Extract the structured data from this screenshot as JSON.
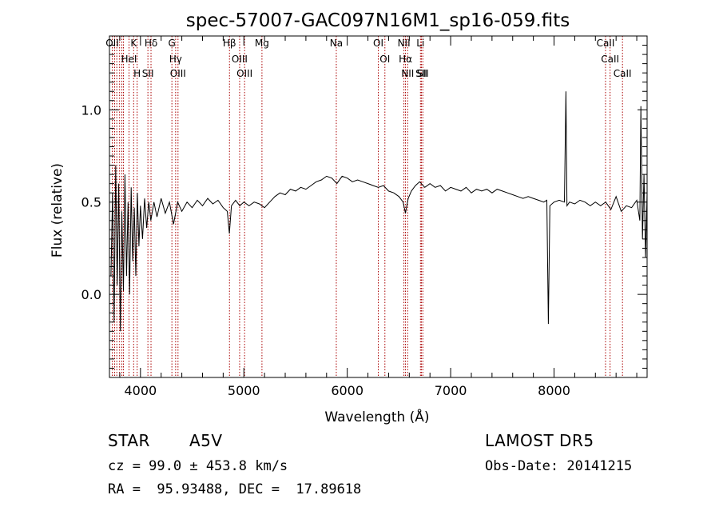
{
  "chart_data": {
    "type": "line",
    "title": "spec-57007-GAC097N16M1_sp16-059.fits",
    "xlabel": "Wavelength (Å)",
    "ylabel": "Flux (relative)",
    "xlim": [
      3700,
      8900
    ],
    "ylim": [
      -0.45,
      1.4
    ],
    "xticks": [
      4000,
      5000,
      6000,
      7000,
      8000
    ],
    "xtick_labels": [
      "4000",
      "5000",
      "6000",
      "7000",
      "8000"
    ],
    "yticks": [
      0.0,
      0.5,
      1.0
    ],
    "ytick_labels": [
      "0.0",
      "0.5",
      "1.0"
    ],
    "grid": false,
    "legend": "none",
    "line_color": "#000000",
    "marker_color": "#aa0000",
    "series": [
      {
        "points": [
          [
            3715,
            0.1
          ],
          [
            3730,
            0.55
          ],
          [
            3745,
            -0.15
          ],
          [
            3760,
            0.7
          ],
          [
            3775,
            0.05
          ],
          [
            3790,
            0.6
          ],
          [
            3805,
            -0.2
          ],
          [
            3820,
            0.45
          ],
          [
            3835,
            0.02
          ],
          [
            3850,
            0.65
          ],
          [
            3865,
            0.1
          ],
          [
            3880,
            0.5
          ],
          [
            3895,
            0.0
          ],
          [
            3910,
            0.58
          ],
          [
            3925,
            0.18
          ],
          [
            3940,
            0.47
          ],
          [
            3955,
            0.1
          ],
          [
            3970,
            0.55
          ],
          [
            3985,
            0.26
          ],
          [
            4000,
            0.48
          ],
          [
            4020,
            0.3
          ],
          [
            4040,
            0.52
          ],
          [
            4060,
            0.36
          ],
          [
            4080,
            0.5
          ],
          [
            4100,
            0.4
          ],
          [
            4130,
            0.5
          ],
          [
            4160,
            0.42
          ],
          [
            4200,
            0.52
          ],
          [
            4240,
            0.44
          ],
          [
            4280,
            0.5
          ],
          [
            4320,
            0.38
          ],
          [
            4360,
            0.5
          ],
          [
            4400,
            0.45
          ],
          [
            4450,
            0.5
          ],
          [
            4500,
            0.47
          ],
          [
            4550,
            0.51
          ],
          [
            4600,
            0.48
          ],
          [
            4650,
            0.52
          ],
          [
            4700,
            0.49
          ],
          [
            4750,
            0.51
          ],
          [
            4800,
            0.47
          ],
          [
            4840,
            0.45
          ],
          [
            4860,
            0.33
          ],
          [
            4880,
            0.48
          ],
          [
            4920,
            0.51
          ],
          [
            4960,
            0.48
          ],
          [
            5000,
            0.5
          ],
          [
            5050,
            0.48
          ],
          [
            5100,
            0.5
          ],
          [
            5150,
            0.49
          ],
          [
            5200,
            0.47
          ],
          [
            5250,
            0.5
          ],
          [
            5300,
            0.53
          ],
          [
            5350,
            0.55
          ],
          [
            5400,
            0.54
          ],
          [
            5450,
            0.57
          ],
          [
            5500,
            0.56
          ],
          [
            5550,
            0.58
          ],
          [
            5600,
            0.57
          ],
          [
            5650,
            0.59
          ],
          [
            5700,
            0.61
          ],
          [
            5750,
            0.62
          ],
          [
            5800,
            0.64
          ],
          [
            5850,
            0.63
          ],
          [
            5900,
            0.6
          ],
          [
            5950,
            0.64
          ],
          [
            6000,
            0.63
          ],
          [
            6050,
            0.61
          ],
          [
            6100,
            0.62
          ],
          [
            6150,
            0.61
          ],
          [
            6200,
            0.6
          ],
          [
            6250,
            0.59
          ],
          [
            6300,
            0.58
          ],
          [
            6350,
            0.59
          ],
          [
            6400,
            0.56
          ],
          [
            6450,
            0.55
          ],
          [
            6500,
            0.53
          ],
          [
            6540,
            0.5
          ],
          [
            6563,
            0.44
          ],
          [
            6590,
            0.52
          ],
          [
            6620,
            0.56
          ],
          [
            6660,
            0.59
          ],
          [
            6700,
            0.61
          ],
          [
            6750,
            0.58
          ],
          [
            6800,
            0.6
          ],
          [
            6850,
            0.58
          ],
          [
            6900,
            0.59
          ],
          [
            6950,
            0.56
          ],
          [
            7000,
            0.58
          ],
          [
            7050,
            0.57
          ],
          [
            7100,
            0.56
          ],
          [
            7150,
            0.58
          ],
          [
            7200,
            0.55
          ],
          [
            7250,
            0.57
          ],
          [
            7300,
            0.56
          ],
          [
            7350,
            0.57
          ],
          [
            7400,
            0.55
          ],
          [
            7450,
            0.57
          ],
          [
            7500,
            0.56
          ],
          [
            7550,
            0.55
          ],
          [
            7600,
            0.54
          ],
          [
            7650,
            0.53
          ],
          [
            7700,
            0.52
          ],
          [
            7750,
            0.53
          ],
          [
            7800,
            0.52
          ],
          [
            7850,
            0.51
          ],
          [
            7900,
            0.5
          ],
          [
            7930,
            0.51
          ],
          [
            7945,
            -0.16
          ],
          [
            7960,
            0.48
          ],
          [
            8000,
            0.5
          ],
          [
            8050,
            0.51
          ],
          [
            8100,
            0.5
          ],
          [
            8115,
            1.1
          ],
          [
            8125,
            0.48
          ],
          [
            8150,
            0.5
          ],
          [
            8200,
            0.49
          ],
          [
            8250,
            0.51
          ],
          [
            8300,
            0.5
          ],
          [
            8350,
            0.48
          ],
          [
            8400,
            0.5
          ],
          [
            8450,
            0.48
          ],
          [
            8500,
            0.5
          ],
          [
            8550,
            0.46
          ],
          [
            8600,
            0.53
          ],
          [
            8650,
            0.45
          ],
          [
            8700,
            0.48
          ],
          [
            8750,
            0.47
          ],
          [
            8800,
            0.51
          ],
          [
            8830,
            0.4
          ],
          [
            8840,
            1.02
          ],
          [
            8855,
            0.3
          ],
          [
            8870,
            0.65
          ],
          [
            8885,
            0.2
          ],
          [
            8900,
            0.55
          ]
        ]
      }
    ],
    "lines": [
      {
        "wavelength": 3727,
        "labels": [
          "OII"
        ]
      },
      {
        "wavelength": 3750,
        "labels": []
      },
      {
        "wavelength": 3771,
        "labels": []
      },
      {
        "wavelength": 3798,
        "labels": []
      },
      {
        "wavelength": 3820,
        "labels": []
      },
      {
        "wavelength": 3835,
        "labels": []
      },
      {
        "wavelength": 3889,
        "labels": [
          "HeI"
        ]
      },
      {
        "wavelength": 3934,
        "labels": [
          "K"
        ]
      },
      {
        "wavelength": 3968,
        "labels": [
          "H"
        ]
      },
      {
        "wavelength": 4072,
        "labels": [
          "SII"
        ]
      },
      {
        "wavelength": 4102,
        "labels": [
          "Hδ"
        ]
      },
      {
        "wavelength": 4304,
        "labels": [
          "G"
        ]
      },
      {
        "wavelength": 4340,
        "labels": [
          "Hγ"
        ]
      },
      {
        "wavelength": 4363,
        "labels": [
          "OIII"
        ]
      },
      {
        "wavelength": 4861,
        "labels": [
          "Hβ"
        ]
      },
      {
        "wavelength": 4959,
        "labels": [
          "OIII"
        ]
      },
      {
        "wavelength": 5007,
        "labels": [
          "OIII"
        ]
      },
      {
        "wavelength": 5175,
        "labels": [
          "Mg"
        ]
      },
      {
        "wavelength": 5894,
        "labels": [
          "Na"
        ]
      },
      {
        "wavelength": 6300,
        "labels": [
          "OI"
        ]
      },
      {
        "wavelength": 6364,
        "labels": [
          "OI"
        ]
      },
      {
        "wavelength": 6548,
        "labels": [
          "NII"
        ]
      },
      {
        "wavelength": 6563,
        "labels": [
          "Hα"
        ]
      },
      {
        "wavelength": 6584,
        "labels": [
          "NII"
        ]
      },
      {
        "wavelength": 6708,
        "labels": [
          "Li"
        ]
      },
      {
        "wavelength": 6717,
        "labels": [
          "SII"
        ]
      },
      {
        "wavelength": 6731,
        "labels": [
          "SII"
        ]
      },
      {
        "wavelength": 8498,
        "labels": [
          "CaII"
        ]
      },
      {
        "wavelength": 8542,
        "labels": [
          "CaII"
        ]
      },
      {
        "wavelength": 8662,
        "labels": [
          "CaII"
        ]
      }
    ]
  },
  "info": {
    "object_class": "STAR",
    "subclass": "A5V",
    "survey": "LAMOST DR5",
    "velocity": "cz = 99.0 ± 453.8 km/s",
    "obs_date": "Obs-Date: 20141215",
    "coords": "RA =  95.93488, DEC =  17.89618"
  }
}
